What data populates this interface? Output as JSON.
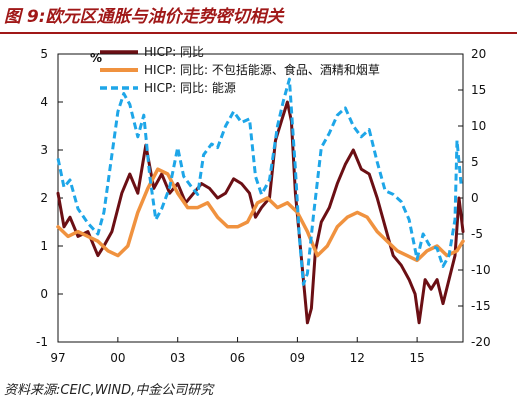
{
  "figure": {
    "title": "图 9:欧元区通胀与油价走势密切相关",
    "source": "资料来源:CEIC,WIND,中金公司研究"
  },
  "chart_data": {
    "type": "line",
    "left_axis": {
      "ylim": [
        -1,
        5
      ],
      "ticks": [
        -1,
        0,
        1,
        2,
        3,
        4,
        5
      ],
      "unit": "%"
    },
    "right_axis": {
      "ylim": [
        -20,
        20
      ],
      "ticks": [
        -20,
        -15,
        -10,
        -5,
        0,
        5,
        10,
        15,
        20
      ]
    },
    "xlim": [
      1997,
      2017.3
    ],
    "x_tick_values": [
      1997,
      2000,
      2003,
      2006,
      2009,
      2012,
      2015
    ],
    "x_tick_labels": [
      "97",
      "00",
      "03",
      "06",
      "09",
      "12",
      "15"
    ],
    "legend_position": "top-left",
    "grid": false,
    "series": [
      {
        "name": "HICP: 同比",
        "axis": "left",
        "color": "#6b0f14",
        "style": "solid",
        "width": 3,
        "x": [
          1997.0,
          1997.3,
          1997.6,
          1998.0,
          1998.5,
          1999.0,
          1999.3,
          1999.7,
          2000.2,
          2000.6,
          2001.0,
          2001.4,
          2001.8,
          2002.2,
          2002.6,
          2003.0,
          2003.4,
          2003.8,
          2004.2,
          2004.6,
          2005.0,
          2005.4,
          2005.8,
          2006.2,
          2006.6,
          2006.9,
          2007.2,
          2007.6,
          2007.9,
          2008.2,
          2008.5,
          2008.7,
          2008.9,
          2009.1,
          2009.3,
          2009.5,
          2009.7,
          2009.9,
          2010.2,
          2010.6,
          2011.0,
          2011.4,
          2011.8,
          2012.2,
          2012.6,
          2013.0,
          2013.4,
          2013.8,
          2014.2,
          2014.6,
          2014.9,
          2015.1,
          2015.4,
          2015.7,
          2016.0,
          2016.3,
          2016.6,
          2016.9,
          2017.1,
          2017.3
        ],
        "y": [
          2.1,
          1.4,
          1.6,
          1.2,
          1.3,
          0.8,
          1.0,
          1.3,
          2.1,
          2.5,
          2.1,
          3.1,
          2.2,
          2.5,
          2.1,
          2.3,
          1.9,
          2.1,
          2.3,
          2.2,
          2.0,
          2.1,
          2.4,
          2.3,
          2.1,
          1.6,
          1.8,
          2.0,
          3.2,
          3.6,
          4.0,
          3.6,
          2.1,
          1.2,
          0.3,
          -0.6,
          -0.3,
          0.9,
          1.5,
          1.8,
          2.3,
          2.7,
          3.0,
          2.6,
          2.5,
          2.0,
          1.4,
          0.8,
          0.6,
          0.3,
          0.0,
          -0.6,
          0.3,
          0.1,
          0.3,
          -0.2,
          0.3,
          0.8,
          2.0,
          1.3
        ]
      },
      {
        "name": "HICP: 同比: 不包括能源、食品、酒精和烟草",
        "axis": "left",
        "color": "#f0923f",
        "style": "solid",
        "width": 3.5,
        "x": [
          1997.0,
          1997.5,
          1998.0,
          1998.5,
          1999.0,
          1999.5,
          2000.0,
          2000.5,
          2001.0,
          2001.5,
          2002.0,
          2002.5,
          2003.0,
          2003.5,
          2004.0,
          2004.5,
          2005.0,
          2005.5,
          2006.0,
          2006.5,
          2007.0,
          2007.5,
          2008.0,
          2008.5,
          2009.0,
          2009.5,
          2010.0,
          2010.5,
          2011.0,
          2011.5,
          2012.0,
          2012.5,
          2013.0,
          2013.5,
          2014.0,
          2014.5,
          2015.0,
          2015.5,
          2016.0,
          2016.5,
          2017.0,
          2017.3
        ],
        "y": [
          1.4,
          1.2,
          1.3,
          1.2,
          1.1,
          0.9,
          0.8,
          1.0,
          1.7,
          2.2,
          2.6,
          2.5,
          2.1,
          1.8,
          1.8,
          1.9,
          1.6,
          1.4,
          1.4,
          1.5,
          1.9,
          2.0,
          1.8,
          1.9,
          1.7,
          1.3,
          0.8,
          1.0,
          1.4,
          1.6,
          1.7,
          1.6,
          1.3,
          1.1,
          0.9,
          0.8,
          0.7,
          0.9,
          1.0,
          0.8,
          0.9,
          1.1
        ]
      },
      {
        "name": "HICP: 同比: 能源",
        "axis": "right",
        "color": "#1ea6e8",
        "style": "dashed",
        "width": 3,
        "x": [
          1997.0,
          1997.3,
          1997.6,
          1998.0,
          1998.5,
          1999.0,
          1999.3,
          1999.6,
          2000.0,
          2000.3,
          2000.6,
          2001.0,
          2001.3,
          2001.6,
          2001.9,
          2002.2,
          2002.6,
          2003.0,
          2003.3,
          2003.7,
          2004.0,
          2004.3,
          2004.7,
          2005.0,
          2005.4,
          2005.8,
          2006.2,
          2006.6,
          2006.9,
          2007.2,
          2007.6,
          2008.0,
          2008.3,
          2008.6,
          2008.9,
          2009.1,
          2009.3,
          2009.5,
          2009.8,
          2010.2,
          2010.6,
          2011.0,
          2011.4,
          2011.8,
          2012.2,
          2012.6,
          2013.0,
          2013.4,
          2013.8,
          2014.2,
          2014.6,
          2015.0,
          2015.3,
          2015.6,
          2016.0,
          2016.3,
          2016.6,
          2016.9,
          2017.0,
          2017.2
        ],
        "y": [
          5.5,
          1.5,
          2.5,
          -1.5,
          -3.5,
          -5.0,
          -2.0,
          4.0,
          12.0,
          14.5,
          13.0,
          8.5,
          11.5,
          3.0,
          -3.0,
          -1.5,
          1.5,
          7.0,
          3.0,
          1.5,
          0.5,
          6.0,
          7.5,
          7.0,
          10.0,
          12.0,
          10.5,
          11.0,
          3.0,
          0.5,
          2.5,
          10.0,
          13.5,
          16.5,
          4.0,
          -5.5,
          -12.0,
          -10.5,
          -2.5,
          7.0,
          9.0,
          11.5,
          12.5,
          10.0,
          8.5,
          9.5,
          5.0,
          1.0,
          0.5,
          -0.5,
          -3.0,
          -8.5,
          -5.0,
          -6.5,
          -7.0,
          -9.5,
          -8.0,
          -3.0,
          8.0,
          2.0
        ]
      }
    ]
  }
}
